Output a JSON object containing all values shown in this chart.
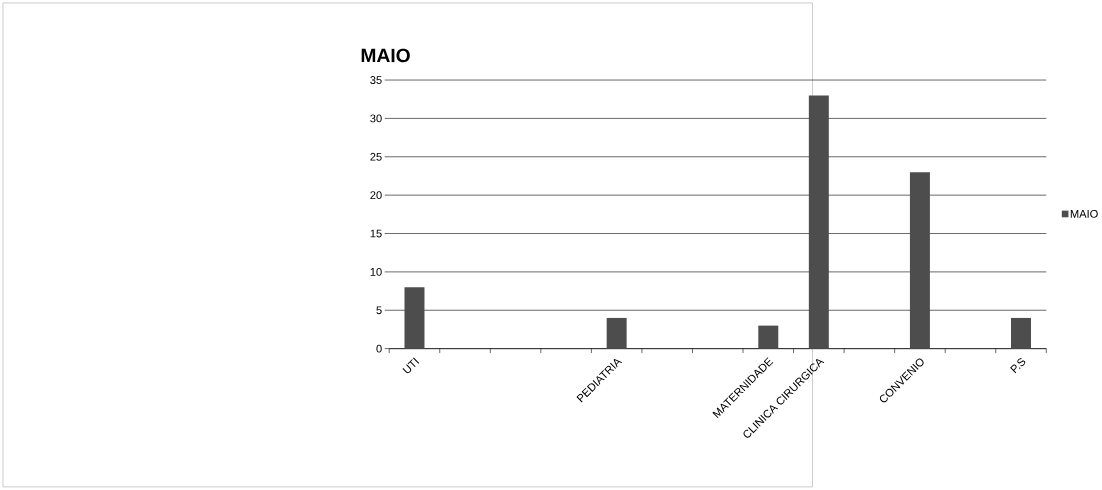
{
  "chart_data": {
    "type": "bar",
    "title": "MAIO",
    "categories": [
      "UTI",
      null,
      null,
      null,
      "PEDIATRIA",
      null,
      null,
      "MATERNIDADE",
      "CLINICA CIRURGICA",
      null,
      "CONVENIO",
      null,
      "P.S"
    ],
    "series": [
      {
        "name": "MAIO",
        "color": "#4d4d4d",
        "values": [
          8,
          null,
          null,
          null,
          4,
          null,
          null,
          3,
          33,
          null,
          23,
          null,
          4
        ]
      }
    ],
    "ylim": [
      0,
      35
    ],
    "yticks": [
      0,
      5,
      10,
      15,
      20,
      25,
      30,
      35
    ],
    "grid": "y",
    "legend": "right"
  }
}
